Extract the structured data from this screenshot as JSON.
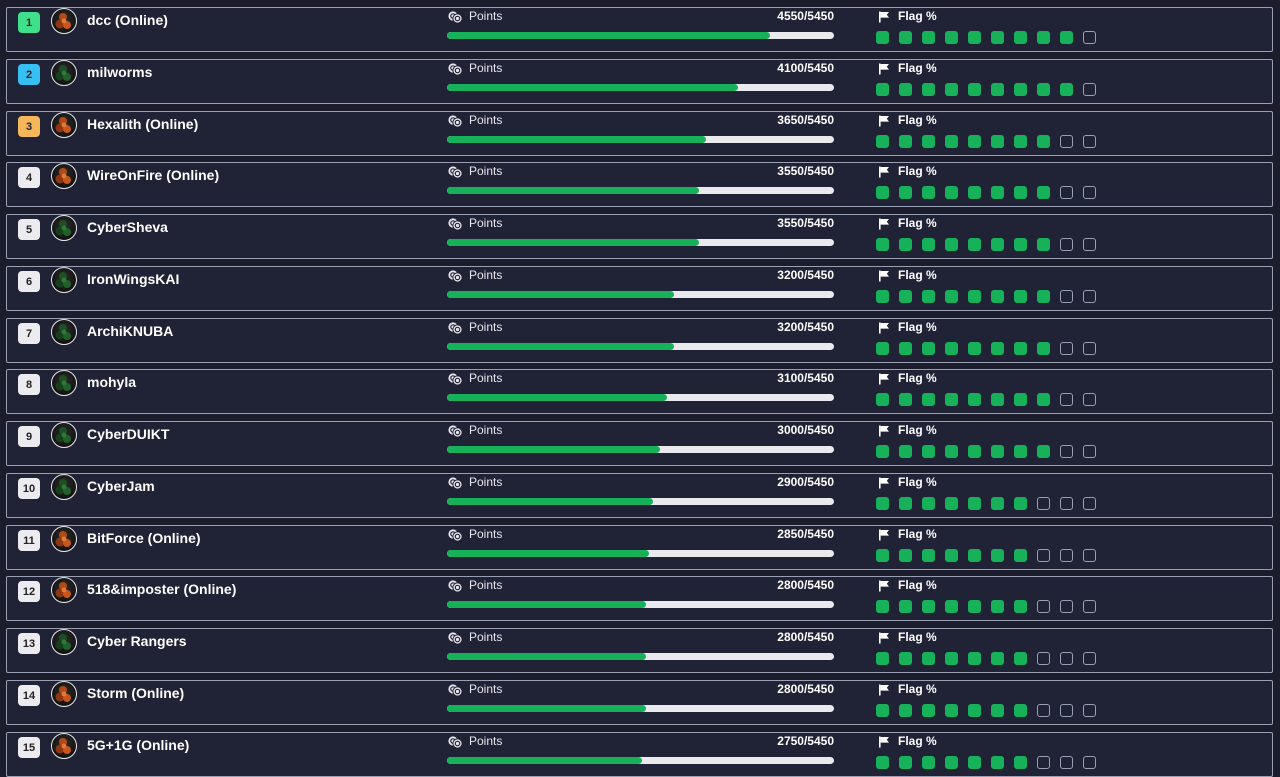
{
  "points_label": "Points",
  "flag_label": "Flag %",
  "colors": {
    "background": "#1b1d2c",
    "row_background": "#202235",
    "progress_fill": "#17b15a",
    "progress_track": "#e9e9ee",
    "rank_1": "#3ee08b",
    "rank_2": "#36bff2",
    "rank_3": "#f6b65a",
    "rank_default": "#ececf0"
  },
  "flag_total": 10,
  "teams": [
    {
      "rank": "1",
      "name": "dcc (Online)",
      "points": "4550/5450",
      "progress": 0.835,
      "flags": 9,
      "avatar": "orange"
    },
    {
      "rank": "2",
      "name": "milworms",
      "points": "4100/5450",
      "progress": 0.752,
      "flags": 9,
      "avatar": "green"
    },
    {
      "rank": "3",
      "name": "Hexalith (Online)",
      "points": "3650/5450",
      "progress": 0.67,
      "flags": 8,
      "avatar": "orange"
    },
    {
      "rank": "4",
      "name": "WireOnFire (Online)",
      "points": "3550/5450",
      "progress": 0.651,
      "flags": 8,
      "avatar": "orange"
    },
    {
      "rank": "5",
      "name": "CyberSheva",
      "points": "3550/5450",
      "progress": 0.651,
      "flags": 8,
      "avatar": "green"
    },
    {
      "rank": "6",
      "name": "IronWingsKAI",
      "points": "3200/5450",
      "progress": 0.587,
      "flags": 8,
      "avatar": "green"
    },
    {
      "rank": "7",
      "name": "ArchiKNUBA",
      "points": "3200/5450",
      "progress": 0.587,
      "flags": 8,
      "avatar": "green"
    },
    {
      "rank": "8",
      "name": "mohyla",
      "points": "3100/5450",
      "progress": 0.569,
      "flags": 8,
      "avatar": "green"
    },
    {
      "rank": "9",
      "name": "CyberDUIKT",
      "points": "3000/5450",
      "progress": 0.55,
      "flags": 8,
      "avatar": "green"
    },
    {
      "rank": "10",
      "name": "CyberJam",
      "points": "2900/5450",
      "progress": 0.532,
      "flags": 7,
      "avatar": "green"
    },
    {
      "rank": "11",
      "name": "BitForce (Online)",
      "points": "2850/5450",
      "progress": 0.523,
      "flags": 7,
      "avatar": "orange"
    },
    {
      "rank": "12",
      "name": "518&imposter (Online)",
      "points": "2800/5450",
      "progress": 0.514,
      "flags": 7,
      "avatar": "orange"
    },
    {
      "rank": "13",
      "name": "Cyber Rangers",
      "points": "2800/5450",
      "progress": 0.514,
      "flags": 7,
      "avatar": "green"
    },
    {
      "rank": "14",
      "name": "Storm (Online)",
      "points": "2800/5450",
      "progress": 0.514,
      "flags": 7,
      "avatar": "orange"
    },
    {
      "rank": "15",
      "name": "5G+1G (Online)",
      "points": "2750/5450",
      "progress": 0.505,
      "flags": 7,
      "avatar": "orange"
    }
  ]
}
